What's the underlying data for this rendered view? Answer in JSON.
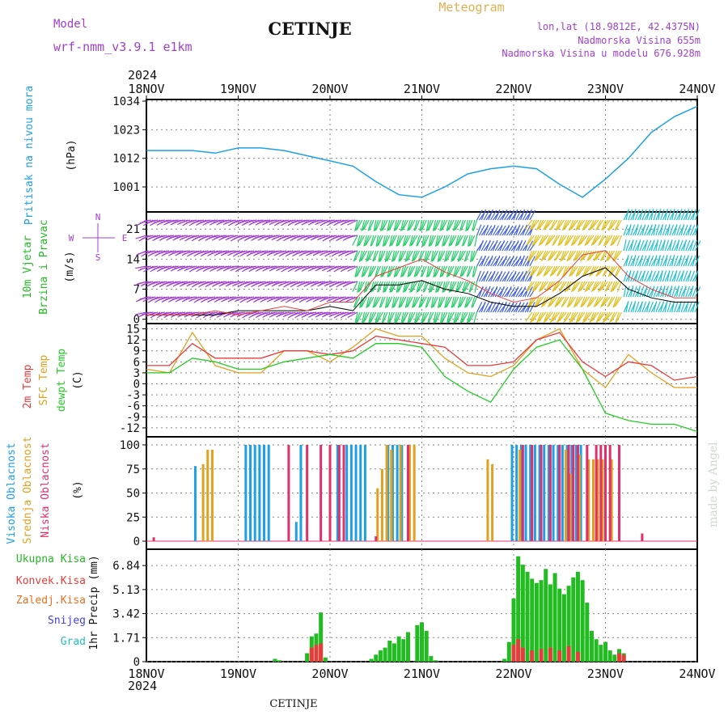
{
  "header": {
    "model_label": "Model",
    "model_name": "wrf-nmm_v3.9.1 e1km",
    "city": "CETINJE",
    "meteogram": "Meteogram",
    "lonlat": "lon,lat (18.9812E, 42.4375N)",
    "elevation": "Nadmorska Visina 655m",
    "model_elevation": "Nadmorska Visina u modelu 676.928m",
    "year_top": "2024",
    "year_bottom": "2024",
    "footer_city": "CETINJE",
    "watermark": "made by Angel"
  },
  "colors": {
    "pressure": "#1ea0e6",
    "wind_text": "#22bb22",
    "wind_purple": "#a040d0",
    "temp2m": "#e83c3c",
    "sfc": "#e0a020",
    "dew": "#22cc22",
    "cloud_high": "#1ea0e6",
    "cloud_mid": "#e0a020",
    "cloud_low": "#e0306a",
    "precip_total": "#22bb22",
    "precip_conv": "#e83c3c",
    "precip_frz": "#e87020",
    "precip_snow": "#4040e0",
    "precip_grad": "#20c0c0",
    "header_purple": "#a040d0",
    "meteogram_color": "#e0b050"
  },
  "chart_data": [
    {
      "type": "line",
      "panel": "pressure",
      "ylabels": [
        "Pritisak na nivou mora",
        "(hPa)"
      ],
      "ylim": [
        992,
        1034
      ],
      "yticks": [
        1001,
        1012,
        1023,
        1034
      ],
      "xticks": [
        "18NOV",
        "19NOV",
        "20NOV",
        "21NOV",
        "22NOV",
        "23NOV",
        "24NOV"
      ],
      "x": [
        0,
        0.25,
        0.5,
        0.75,
        1.0,
        1.25,
        1.5,
        1.75,
        2.0,
        2.25,
        2.5,
        2.75,
        3.0,
        3.25,
        3.5,
        3.75,
        4.0,
        4.25,
        4.5,
        4.75,
        5.0,
        5.25,
        5.5,
        5.75,
        6.0
      ],
      "series": [
        {
          "values": [
            1015,
            1015,
            1015,
            1014,
            1016,
            1016,
            1015,
            1013,
            1011,
            1009,
            1003,
            998,
            997,
            1001,
            1006,
            1008,
            1009,
            1008,
            1002,
            997,
            1004,
            1012,
            1022,
            1028,
            1032
          ]
        }
      ]
    },
    {
      "type": "line",
      "panel": "wind",
      "ylabels": [
        "10m Vjetar",
        "Brzina i Pravac",
        "(m/s)"
      ],
      "compass": [
        "N",
        "E",
        "S",
        "W"
      ],
      "ylim": [
        -1,
        25
      ],
      "yticks": [
        0,
        7,
        14,
        21
      ],
      "series": [
        {
          "values": [
            1,
            1,
            1,
            1,
            2,
            2,
            2,
            2,
            3,
            2,
            8,
            8,
            9,
            7,
            6,
            4,
            3,
            3,
            6,
            10,
            12,
            7,
            5,
            4,
            4
          ]
        },
        {
          "values": [
            1,
            1,
            1,
            2,
            1,
            2,
            3,
            2,
            4,
            4,
            10,
            12,
            14,
            11,
            9,
            6,
            4,
            5,
            9,
            15,
            16,
            10,
            7,
            5,
            5
          ]
        }
      ],
      "barb_directions": [
        {
          "from_day": 0.0,
          "to_day": 2.3,
          "color": "#a040d0",
          "angle": 250
        },
        {
          "from_day": 2.3,
          "to_day": 3.6,
          "color": "#22cc66",
          "angle": 200
        },
        {
          "from_day": 3.6,
          "to_day": 4.2,
          "color": "#4060e0",
          "angle": 30
        },
        {
          "from_day": 4.2,
          "to_day": 5.2,
          "color": "#e0c020",
          "angle": 210
        },
        {
          "from_day": 5.2,
          "to_day": 6.0,
          "color": "#20c0d0",
          "angle": 20
        }
      ]
    },
    {
      "type": "line",
      "panel": "temperature",
      "ylabels": [
        "2m Temp",
        "SFC Temp",
        "dewpt Temp",
        "(C)"
      ],
      "ylim": [
        -14,
        16
      ],
      "yticks": [
        -12,
        -9,
        -6,
        -3,
        0,
        3,
        6,
        9,
        12,
        15
      ],
      "series": [
        {
          "name": "2m Temp",
          "values": [
            5,
            5,
            11,
            7,
            7,
            7,
            9,
            9,
            8,
            9,
            13,
            12,
            11,
            10,
            5,
            5,
            6,
            12,
            14,
            6,
            2,
            6,
            5,
            1,
            2
          ]
        },
        {
          "name": "SFC Temp",
          "values": [
            4,
            3,
            14,
            5,
            3,
            3,
            9,
            9,
            6,
            10,
            15,
            13,
            13,
            7,
            3,
            2,
            5,
            12,
            15,
            4,
            -1,
            8,
            3,
            -1,
            -1
          ]
        },
        {
          "name": "dewpt Temp",
          "values": [
            3,
            3,
            7,
            6,
            4,
            4,
            6,
            7,
            8,
            7,
            11,
            11,
            10,
            2,
            -2,
            -5,
            4,
            10,
            12,
            4,
            -8,
            -10,
            -11,
            -11,
            -13
          ]
        }
      ]
    },
    {
      "type": "bar",
      "panel": "clouds",
      "ylabels": [
        "Visoka Oblacnost",
        "Srednja Oblacnost",
        "Niska Oblacnost",
        "(%)"
      ],
      "ylim": [
        0,
        100
      ],
      "yticks": [
        0,
        25,
        50,
        75,
        100
      ],
      "series": [
        {
          "name": "Visoka Oblacnost",
          "x": [
            0.55,
            1.1,
            1.15,
            1.2,
            1.25,
            1.3,
            1.35,
            1.65,
            1.7,
            2.1,
            2.2,
            2.25,
            2.3,
            2.35,
            2.4,
            2.65,
            2.7,
            2.75,
            2.8,
            4.0,
            4.05,
            4.1,
            4.15,
            4.2,
            4.25,
            4.3,
            4.35,
            4.4,
            4.45,
            4.5,
            4.55,
            4.6,
            4.65,
            4.7,
            4.75
          ],
          "values": [
            78,
            100,
            100,
            100,
            100,
            100,
            100,
            20,
            100,
            100,
            100,
            100,
            100,
            100,
            100,
            100,
            100,
            100,
            100,
            100,
            100,
            100,
            100,
            100,
            100,
            100,
            100,
            100,
            100,
            100,
            100,
            100,
            100,
            100,
            100
          ]
        },
        {
          "name": "Srednja Oblacnost",
          "x": [
            0.6,
            0.65,
            0.7,
            2.5,
            2.55,
            2.6,
            2.65,
            2.75,
            2.85,
            2.9,
            3.7,
            3.75,
            4.05,
            4.55,
            4.6,
            4.7,
            4.8,
            4.85,
            4.9,
            4.95,
            5.05
          ],
          "values": [
            80,
            95,
            95,
            55,
            75,
            100,
            95,
            100,
            100,
            100,
            85,
            80,
            95,
            95,
            70,
            90,
            85,
            85,
            85,
            85,
            85
          ]
        },
        {
          "name": "Niska Oblacnost",
          "x": [
            0.08,
            1.55,
            1.75,
            1.9,
            2.0,
            2.1,
            2.15,
            2.5,
            2.85,
            4.1,
            4.2,
            4.3,
            4.4,
            4.5,
            4.6,
            4.65,
            4.7,
            4.8,
            4.9,
            4.95,
            5.0,
            5.05,
            5.15,
            5.4
          ],
          "values": [
            4,
            100,
            100,
            100,
            100,
            100,
            100,
            5,
            100,
            100,
            100,
            100,
            100,
            100,
            100,
            100,
            100,
            100,
            100,
            100,
            100,
            100,
            100,
            8
          ]
        }
      ]
    },
    {
      "type": "bar",
      "panel": "precipitation",
      "ylabels": [
        "Ukupna Kisa",
        "Konvek.Kisa",
        "Zaledj.Kisa",
        "Snijeg",
        "Grad",
        "1hr Precip (mm)"
      ],
      "ylim": [
        0,
        8
      ],
      "yticks": [
        0,
        1.71,
        3.42,
        5.13,
        6.84
      ],
      "ytick_labels": [
        "0",
        "1.71",
        "3.42",
        "5.13",
        "6.84"
      ],
      "series": [
        {
          "name": "Ukupna Kisa",
          "x": [
            1.4,
            1.45,
            1.75,
            1.8,
            1.85,
            1.9,
            1.95,
            2.45,
            2.5,
            2.55,
            2.6,
            2.65,
            2.7,
            2.75,
            2.8,
            2.85,
            2.95,
            3.0,
            3.05,
            3.1,
            3.15,
            3.9,
            3.95,
            4.0,
            4.05,
            4.1,
            4.15,
            4.2,
            4.25,
            4.3,
            4.35,
            4.4,
            4.45,
            4.5,
            4.55,
            4.6,
            4.65,
            4.7,
            4.75,
            4.8,
            4.85,
            4.9,
            4.95,
            5.0,
            5.05,
            5.1,
            5.15,
            5.2
          ],
          "values": [
            0.2,
            0.1,
            0.6,
            1.8,
            2.0,
            3.5,
            0.3,
            0.2,
            0.5,
            0.8,
            1.0,
            1.5,
            1.3,
            1.8,
            1.6,
            2.1,
            2.6,
            2.8,
            2.2,
            0.4,
            0.1,
            0.2,
            1.4,
            4.5,
            7.5,
            6.9,
            6.4,
            5.9,
            5.6,
            5.8,
            6.6,
            5.5,
            6.3,
            5.2,
            4.8,
            5.4,
            6.0,
            6.4,
            5.8,
            4.2,
            2.2,
            1.6,
            1.2,
            1.4,
            0.8,
            0.5,
            0.9,
            0.6
          ]
        },
        {
          "name": "Konvek.Kisa",
          "x": [
            1.8,
            1.85,
            1.9,
            4.0,
            4.05,
            4.1,
            4.2,
            4.3,
            4.4,
            4.5,
            4.6,
            4.7,
            5.15,
            5.2
          ],
          "values": [
            1.0,
            1.2,
            1.3,
            1.2,
            1.6,
            1.0,
            0.8,
            0.9,
            1.0,
            0.8,
            1.1,
            0.7,
            0.6,
            0.5
          ]
        },
        {
          "name": "Zaledj.Kisa",
          "x": [],
          "values": []
        },
        {
          "name": "Snijeg",
          "x": [],
          "values": []
        },
        {
          "name": "Grad",
          "x": [],
          "values": []
        }
      ]
    }
  ]
}
